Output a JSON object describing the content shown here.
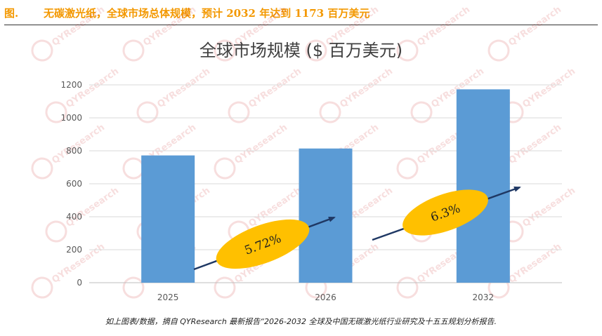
{
  "header": {
    "label": "图.",
    "title": "无碳激光纸，全球市场总体规模，预计 2032 年达到 1173 百万美元"
  },
  "chart_data": {
    "type": "bar",
    "title": "全球市场规模 ($ 百万美元)",
    "categories": [
      "2025",
      "2026",
      "2032"
    ],
    "values": [
      772,
      814,
      1173
    ],
    "ylim": [
      0,
      1200
    ],
    "yticks": [
      0,
      200,
      400,
      600,
      800,
      1000,
      1200
    ],
    "grid": true,
    "bar_color": "#5b9bd5",
    "annotations": [
      {
        "text": "5.72%",
        "color": "#ffc000"
      },
      {
        "text": "6.3%",
        "color": "#ffc000"
      }
    ]
  },
  "watermark": "QYResearch",
  "source": "如上图表/数据，摘自 QYResearch 最新报告“2026-2032 全球及中国无碳激光纸行业研究及十五五规划分析报告."
}
